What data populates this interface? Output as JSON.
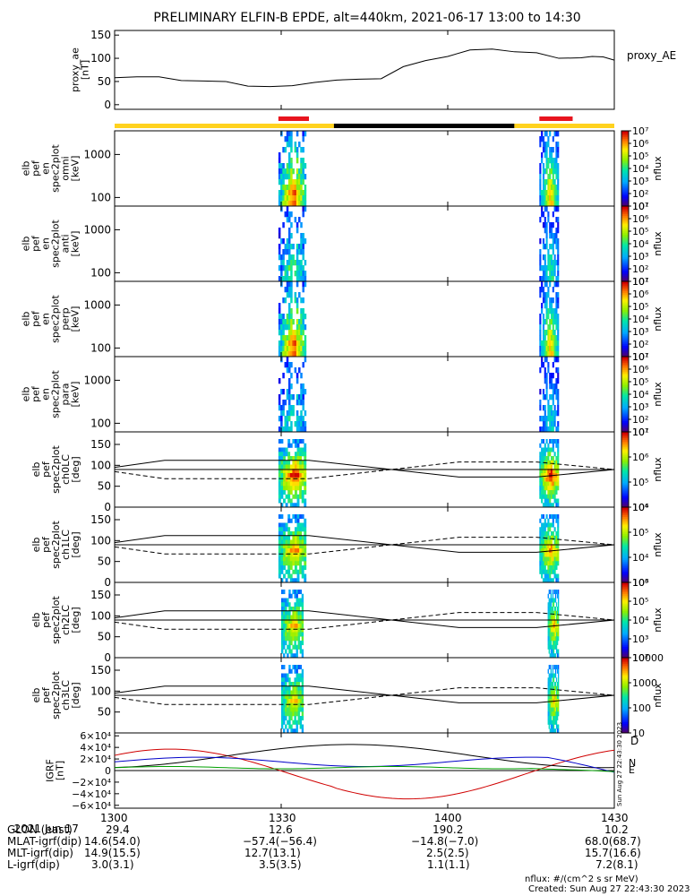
{
  "title": "PRELIMINARY ELFIN-B EPDE, alt=440km, 2021-06-17 13:00 to 14:30",
  "colors": {
    "bar_yellow": "#ffd21e",
    "bar_black": "#000000",
    "bar_red": "#e8141e",
    "bz": "#d00000",
    "by": "#0000c8",
    "bx": "#00a000"
  },
  "chart_data": [
    {
      "type": "line",
      "panel": "proxy_ae",
      "ylabel_lines": [
        "proxy_ae",
        "[nT]"
      ],
      "legend": "proxy_AE",
      "yticks": [
        "0",
        "50",
        "100",
        "150"
      ],
      "ylim": [
        -10,
        160
      ],
      "xlim_min": [
        0,
        90
      ],
      "series": [
        {
          "x": [
            0,
            4,
            8,
            12,
            16,
            20,
            24,
            28,
            32,
            36,
            40,
            44,
            48,
            52,
            56,
            60,
            64,
            68,
            72,
            76,
            80,
            84,
            86,
            88,
            90
          ],
          "y": [
            58,
            60,
            60,
            52,
            51,
            50,
            40,
            39,
            41,
            48,
            53,
            55,
            56,
            82,
            95,
            104,
            118,
            120,
            114,
            112,
            100,
            101,
            104,
            103,
            96
          ]
        }
      ]
    },
    {
      "type": "heatmap",
      "panel": "spec_omni",
      "ylabel_lines": [
        "elb",
        "pef",
        "en",
        "spec2plot",
        "omni",
        "[keV]"
      ],
      "yticks": [
        "100",
        "1000"
      ],
      "colorbar_label": "nflux",
      "colorbar_ticks": [
        "10¹",
        "10²",
        "10³",
        "10⁴",
        "10⁵",
        "10⁶",
        "10⁷"
      ]
    },
    {
      "type": "heatmap",
      "panel": "spec_anti",
      "ylabel_lines": [
        "elb",
        "pef",
        "en",
        "spec2plot",
        "anti",
        "[keV]"
      ],
      "yticks": [
        "100",
        "1000"
      ],
      "colorbar_label": "nflux",
      "colorbar_ticks": [
        "10¹",
        "10²",
        "10³",
        "10⁴",
        "10⁵",
        "10⁶",
        "10⁷"
      ]
    },
    {
      "type": "heatmap",
      "panel": "spec_perp",
      "ylabel_lines": [
        "elb",
        "pef",
        "en",
        "spec2plot",
        "perp",
        "[keV]"
      ],
      "yticks": [
        "100",
        "1000"
      ],
      "colorbar_label": "nflux",
      "colorbar_ticks": [
        "10¹",
        "10²",
        "10³",
        "10⁴",
        "10⁵",
        "10⁶",
        "10⁷"
      ]
    },
    {
      "type": "heatmap",
      "panel": "spec_para",
      "ylabel_lines": [
        "elb",
        "pef",
        "en",
        "spec2plot",
        "para",
        "[keV]"
      ],
      "yticks": [
        "100",
        "1000"
      ],
      "colorbar_label": "nflux",
      "colorbar_ticks": [
        "10¹",
        "10²",
        "10³",
        "10⁴",
        "10⁵",
        "10⁶",
        "10⁷"
      ]
    },
    {
      "type": "heatmap",
      "panel": "pa_ch0",
      "ylabel_lines": [
        "elb",
        "pef",
        "spec2plot",
        "ch0LC",
        "[deg]"
      ],
      "yticks": [
        "0",
        "50",
        "100",
        "150"
      ],
      "colorbar_label": "nflux",
      "colorbar_ticks": [
        "10⁴",
        "10⁵",
        "10⁶",
        "10⁷"
      ]
    },
    {
      "type": "heatmap",
      "panel": "pa_ch1",
      "ylabel_lines": [
        "elb",
        "pef",
        "spec2plot",
        "ch1LC",
        "[deg]"
      ],
      "yticks": [
        "0",
        "50",
        "100",
        "150"
      ],
      "colorbar_label": "nflux",
      "colorbar_ticks": [
        "10³",
        "10⁴",
        "10⁵",
        "10⁶"
      ]
    },
    {
      "type": "heatmap",
      "panel": "pa_ch2",
      "ylabel_lines": [
        "elb",
        "pef",
        "spec2plot",
        "ch2LC",
        "[deg]"
      ],
      "yticks": [
        "0",
        "50",
        "100",
        "150"
      ],
      "colorbar_label": "nflux",
      "colorbar_ticks": [
        "10²",
        "10³",
        "10⁴",
        "10⁵",
        "10⁶"
      ]
    },
    {
      "type": "heatmap",
      "panel": "pa_ch3",
      "ylabel_lines": [
        "elb",
        "pef",
        "spec2plot",
        "ch3LC",
        "[deg]"
      ],
      "yticks": [
        "50",
        "100",
        "150"
      ],
      "colorbar_label": "nflux",
      "colorbar_ticks": [
        "10",
        "100",
        "1000",
        "10000"
      ]
    },
    {
      "type": "line",
      "panel": "igrf",
      "ylabel_lines": [
        "IGRF",
        "[nT]"
      ],
      "yticks": [
        "−6×10⁴",
        "−4×10⁴",
        "−2×10⁴",
        "0",
        "2×10⁴",
        "4×10⁴",
        "6×10⁴"
      ],
      "ylim": [
        -65000,
        65000
      ],
      "legend": [
        "D",
        "N",
        "E"
      ],
      "xlim_min": [
        0,
        90
      ]
    }
  ],
  "stamp": "Sun Aug 27 22:43:30 2023",
  "footer": {
    "rows": [
      {
        "label": "2021 Jun 17",
        "values": [
          "1300",
          "1330",
          "1400",
          "1430"
        ]
      },
      {
        "label": "GLON (east)",
        "values": [
          "29.4",
          "12.6",
          "190.2",
          "10.2"
        ]
      },
      {
        "label": "MLAT-igrf(dip)",
        "values": [
          "14.6(54.0)",
          "−57.4(−56.4)",
          "−14.8(−7.0)",
          "68.0(68.7)"
        ]
      },
      {
        "label": "MLT-igrf(dip)",
        "values": [
          "14.9(15.5)",
          "12.7(13.1)",
          "2.5(2.5)",
          "15.7(16.6)"
        ]
      },
      {
        "label": "L-igrf(dip)",
        "values": [
          "3.0(3.1)",
          "3.5(3.5)",
          "1.1(1.1)",
          "7.2(8.1)"
        ]
      }
    ],
    "nflux_units": "nflux: #/(cm^2 s sr MeV)",
    "created": "Created: Sun Aug 27 22:43:30 2023"
  }
}
